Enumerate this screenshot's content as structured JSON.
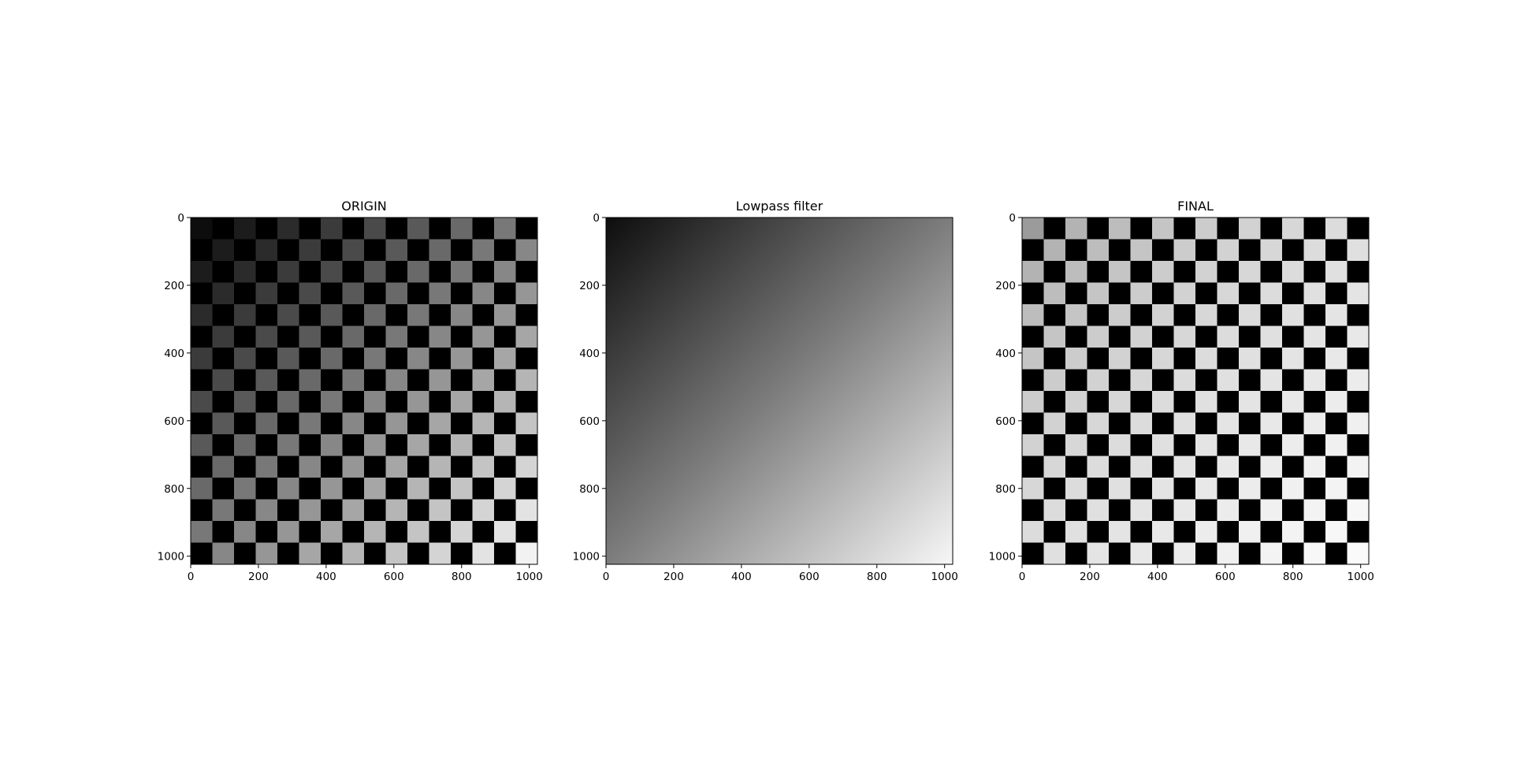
{
  "chart_data": [
    {
      "type": "heatmap",
      "title": "ORIGIN",
      "description_colormap": "gray",
      "image_size": [
        1024,
        1024
      ],
      "checker_squares": 16,
      "pattern": "checkerboard, dark squares black, light squares follow brightness ramp from dark at top-left to bright at bottom-right",
      "brightness_range": [
        0.05,
        0.95
      ],
      "xlim": [
        0,
        1024
      ],
      "ylim": [
        1024,
        0
      ],
      "xticks": [
        "0",
        "200",
        "400",
        "600",
        "800",
        "1000"
      ],
      "yticks": [
        "0",
        "200",
        "400",
        "600",
        "800",
        "1000"
      ]
    },
    {
      "type": "heatmap",
      "title": "Lowpass filter",
      "description_colormap": "gray",
      "image_size": [
        1024,
        1024
      ],
      "pattern": "smooth gradient, dark at top-left to bright at bottom-right",
      "brightness_range": [
        0.05,
        0.97
      ],
      "xlim": [
        0,
        1024
      ],
      "ylim": [
        1024,
        0
      ],
      "xticks": [
        "0",
        "200",
        "400",
        "600",
        "800",
        "1000"
      ],
      "yticks": [
        "0",
        "200",
        "400",
        "600",
        "800",
        "1000"
      ]
    },
    {
      "type": "heatmap",
      "title": "FINAL",
      "description_colormap": "gray",
      "image_size": [
        1024,
        1024
      ],
      "checker_squares": 16,
      "pattern": "checkerboard, dark squares black, light squares mostly uniform light gray (normalized)",
      "brightness_range": [
        0.3,
        0.98
      ],
      "xlim": [
        0,
        1024
      ],
      "ylim": [
        1024,
        0
      ],
      "xticks": [
        "0",
        "200",
        "400",
        "600",
        "800",
        "1000"
      ],
      "yticks": [
        "0",
        "200",
        "400",
        "600",
        "800",
        "1000"
      ]
    }
  ]
}
